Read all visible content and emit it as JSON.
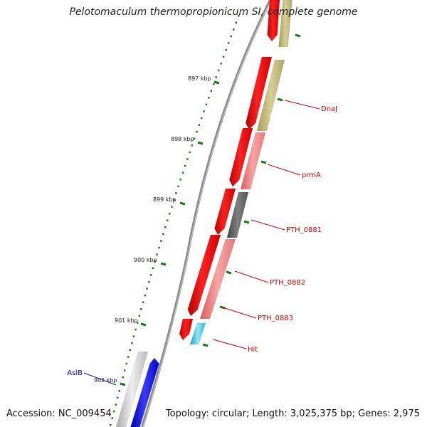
{
  "header": {
    "title": "Pelotomaculum thermopropionicum SI, complete genome"
  },
  "footer": {
    "accession": "Accession: NC_009454",
    "topology": "Topology: circular; Length: 3,025,375 bp; Genes: 2,975"
  },
  "scale_ticks": [
    {
      "label": "897 kbp"
    },
    {
      "label": "898 kbp"
    },
    {
      "label": "899 kbp"
    },
    {
      "label": "900 kbp"
    },
    {
      "label": "901 kbp"
    },
    {
      "label": "902 kbp"
    }
  ],
  "gene_labels": [
    {
      "text": "DnaJ",
      "color": "#cc0000"
    },
    {
      "text": "prmA",
      "color": "#cc0000"
    },
    {
      "text": "PTH_0881",
      "color": "#cc0000"
    },
    {
      "text": "PTH_0882",
      "color": "#cc0000"
    },
    {
      "text": "PTH_0883",
      "color": "#cc0000"
    },
    {
      "text": "Hit",
      "color": "#cc0000"
    },
    {
      "text": "AslB",
      "color": "#0000cc"
    }
  ],
  "colors": {
    "forward_cds": "#ff0000",
    "ruler_tick": "#1a7a1a",
    "backbone": "#888888",
    "olive_feature": "#c8c080",
    "pink_feature": "#f08080",
    "dark_feature": "#666666",
    "cyan_feature": "#33c3e0",
    "blue_feature": "#0000ee",
    "grey_feature": "#c8c8c8"
  }
}
